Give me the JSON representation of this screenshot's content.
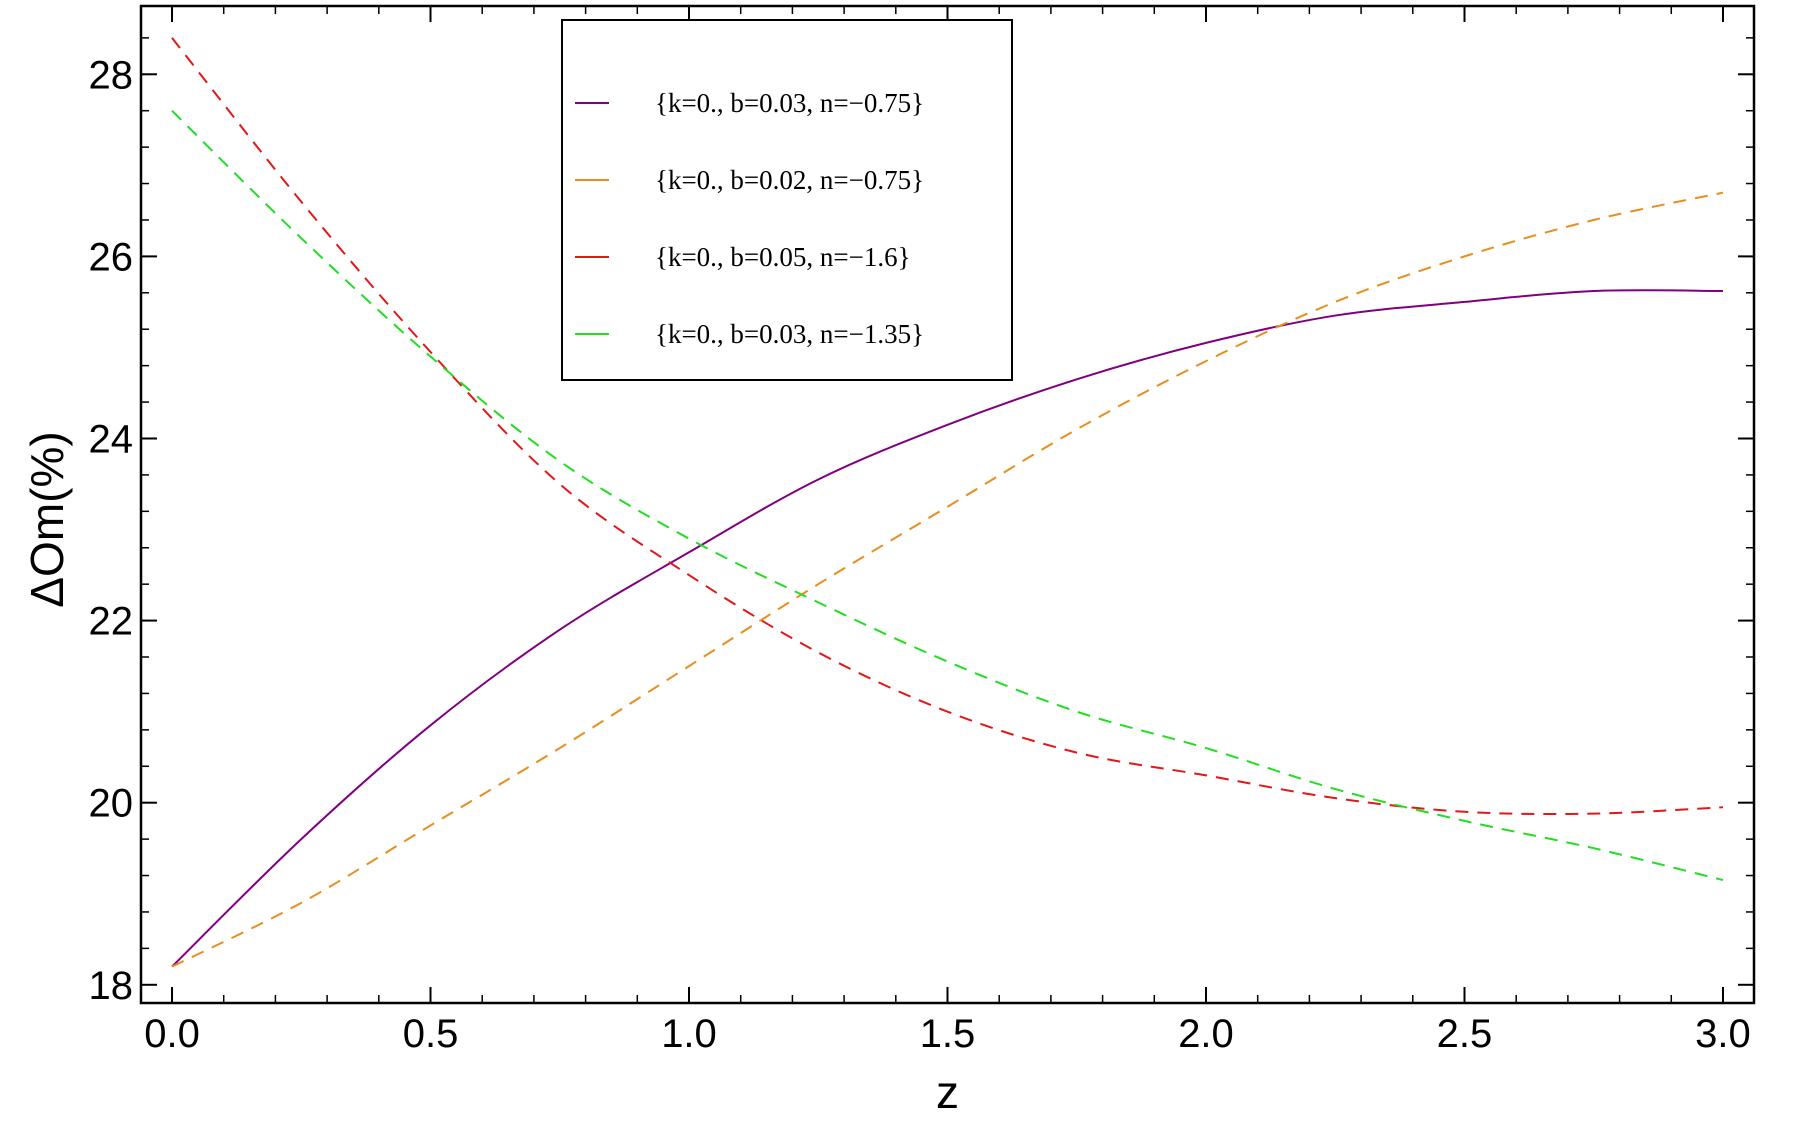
{
  "chart_data": {
    "type": "line",
    "xlabel": "z",
    "ylabel": "ΔOm(%)",
    "xlim": [
      -0.06,
      3.06
    ],
    "ylim": [
      17.8,
      28.75
    ],
    "xticks": [
      0.0,
      0.5,
      1.0,
      1.5,
      2.0,
      2.5,
      3.0
    ],
    "xtick_labels": [
      "0.0",
      "0.5",
      "1.0",
      "1.5",
      "2.0",
      "2.5",
      "3.0"
    ],
    "yticks": [
      18,
      20,
      22,
      24,
      26,
      28
    ],
    "ytick_labels": [
      "18",
      "20",
      "22",
      "24",
      "26",
      "28"
    ],
    "x_minor_step": 0.1,
    "y_minor_step": 0.4,
    "grid": false,
    "legend": {
      "placement": "top-center"
    },
    "series": [
      {
        "name": "{k=0., b=0.03, n=−0.75}",
        "color": "#800080",
        "dashed": false,
        "x": [
          0.0,
          0.25,
          0.5,
          0.75,
          1.0,
          1.25,
          1.5,
          1.75,
          2.0,
          2.25,
          2.5,
          2.75,
          3.0
        ],
        "y": [
          18.2,
          19.6,
          20.85,
          21.9,
          22.75,
          23.55,
          24.15,
          24.65,
          25.05,
          25.35,
          25.5,
          25.62,
          25.62
        ]
      },
      {
        "name": "{k=0., b=0.02, n=−0.75}",
        "color": "#e88d1e",
        "dashed": true,
        "x": [
          0.0,
          0.25,
          0.5,
          0.75,
          1.0,
          1.25,
          1.5,
          1.75,
          2.0,
          2.25,
          2.5,
          2.75,
          3.0
        ],
        "y": [
          18.2,
          18.9,
          19.75,
          20.6,
          21.5,
          22.4,
          23.25,
          24.1,
          24.85,
          25.5,
          26.0,
          26.4,
          26.7
        ]
      },
      {
        "name": "{k=0., b=0.05, n=−1.6}",
        "color": "#e01818",
        "dashed": true,
        "x": [
          0.0,
          0.25,
          0.5,
          0.75,
          1.0,
          1.25,
          1.5,
          1.75,
          2.0,
          2.25,
          2.5,
          2.75,
          3.0
        ],
        "y": [
          28.4,
          26.6,
          24.95,
          23.5,
          22.5,
          21.65,
          21.0,
          20.55,
          20.3,
          20.05,
          19.9,
          19.88,
          19.95
        ]
      },
      {
        "name": "{k=0., b=0.03, n=−1.35}",
        "color": "#22dd22",
        "dashed": true,
        "x": [
          0.0,
          0.25,
          0.5,
          0.75,
          1.0,
          1.25,
          1.5,
          1.75,
          2.0,
          2.25,
          2.5,
          2.75,
          3.0
        ],
        "y": [
          27.6,
          26.2,
          24.9,
          23.75,
          22.9,
          22.2,
          21.55,
          21.0,
          20.6,
          20.15,
          19.8,
          19.5,
          19.15
        ]
      }
    ]
  }
}
